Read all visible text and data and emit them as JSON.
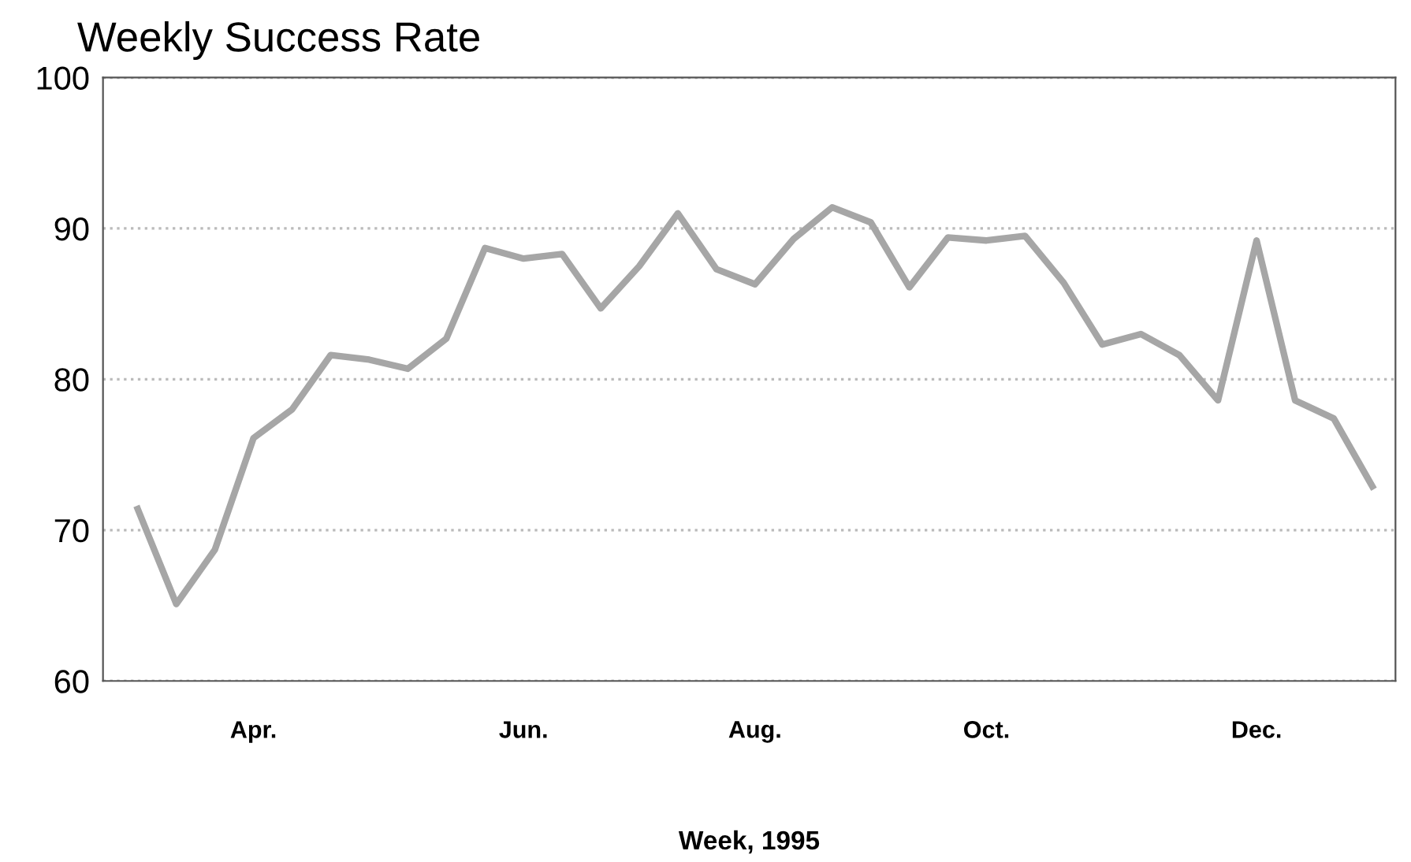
{
  "chart_data": {
    "type": "line",
    "title": "Weekly Success Rate",
    "xlabel": "Week, 1995",
    "categories": [
      null,
      null,
      null,
      "Apr.",
      null,
      null,
      null,
      null,
      null,
      null,
      "Jun.",
      null,
      null,
      null,
      null,
      null,
      "Aug.",
      null,
      null,
      null,
      null,
      null,
      "Oct.",
      null,
      null,
      null,
      null,
      null,
      null,
      "Dec.",
      null,
      null,
      null
    ],
    "series": [
      {
        "color": "#a6a6a6",
        "values": [
          71.4,
          65.1,
          68.7,
          76.1,
          78.0,
          81.6,
          81.3,
          80.7,
          82.7,
          88.7,
          88.0,
          88.3,
          84.7,
          87.5,
          91.0,
          87.3,
          86.3,
          89.3,
          91.4,
          90.4,
          86.1,
          89.4,
          89.2,
          89.5,
          86.4,
          82.3,
          83.0,
          81.6,
          78.6,
          89.2,
          78.6,
          77.4,
          72.9
        ]
      }
    ],
    "ylim": [
      60,
      100
    ],
    "yticks": [
      60,
      70,
      80,
      90,
      100
    ],
    "grid": "y",
    "marker": "none",
    "line_style": "solid"
  }
}
